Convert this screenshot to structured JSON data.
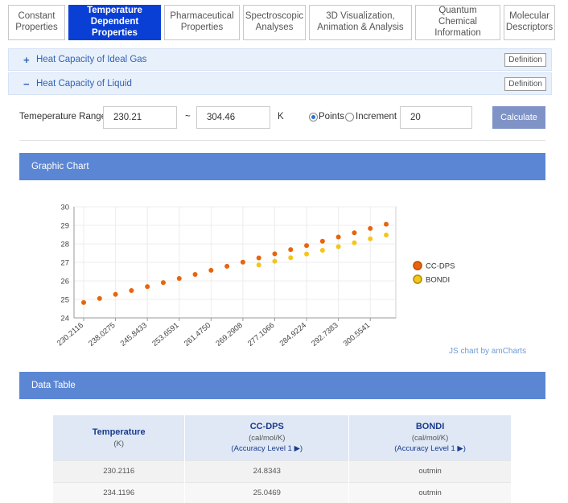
{
  "tabs": [
    {
      "label": "Constant\nProperties",
      "active": false
    },
    {
      "label": "Temperature\nDependent Properties",
      "active": true
    },
    {
      "label": "Pharmaceutical\nProperties",
      "active": false
    },
    {
      "label": "Spectroscopic\nAnalyses",
      "active": false
    },
    {
      "label": "3D Visualization,\nAnimation & Analysis",
      "active": false
    },
    {
      "label": "Quantum Chemical\nInformation",
      "active": false
    },
    {
      "label": "Molecular\nDescriptors",
      "active": false
    }
  ],
  "accordion": [
    {
      "sign": "+",
      "label": "Heat Capacity of Ideal Gas",
      "definition": "Definition"
    },
    {
      "sign": "−",
      "label": "Heat Capacity of Liquid",
      "definition": "Definition"
    }
  ],
  "range": {
    "label": "Temeperature Range",
    "min": "230.21",
    "tilde": "~",
    "max": "304.46",
    "unit": "K",
    "points_label": "Points",
    "increment_label": "Increment",
    "count": "20",
    "calculate": "Calculate"
  },
  "graphic_bar": "Graphic Chart",
  "data_bar": "Data Table",
  "chart_data": {
    "type": "scatter",
    "ylim": [
      24,
      30
    ],
    "yticks": [
      24,
      25,
      26,
      27,
      28,
      29,
      30
    ],
    "xlim": [
      230.2116,
      304.46
    ],
    "xticks": [
      "230.2116",
      "238.0275",
      "245.8433",
      "253.6591",
      "261.4750",
      "269.2908",
      "277.1066",
      "284.9224",
      "292.7383",
      "300.5541"
    ],
    "grid": true,
    "legend_position": "right",
    "series": [
      {
        "name": "CC-DPS",
        "color": "#e8650e",
        "x": [
          230.2116,
          234.1196,
          238.0275,
          241.9354,
          245.8433,
          249.7512,
          253.6591,
          257.567,
          261.475,
          265.3829,
          269.2908,
          273.1987,
          277.1066,
          281.0145,
          284.9224,
          288.8304,
          292.7383,
          296.6462,
          300.5541,
          304.462
        ],
        "y": [
          24.83,
          25.05,
          25.27,
          25.48,
          25.69,
          25.91,
          26.13,
          26.35,
          26.57,
          26.79,
          27.01,
          27.24,
          27.46,
          27.69,
          27.91,
          28.14,
          28.37,
          28.6,
          28.83,
          29.06
        ]
      },
      {
        "name": "BONDI",
        "color": "#f5c518",
        "x": [
          273.1987,
          277.1066,
          281.0145,
          284.9224,
          288.8304,
          292.7383,
          296.6462,
          300.5541,
          304.462
        ],
        "y": [
          26.86,
          27.06,
          27.25,
          27.45,
          27.65,
          27.85,
          28.06,
          28.27,
          28.48
        ]
      }
    ]
  },
  "chart_credit": "JS chart by amCharts",
  "table": {
    "headers": [
      {
        "title": "Temperature",
        "unit": "(K)",
        "link": ""
      },
      {
        "title": "CC-DPS",
        "unit": "(cal/mol/K)",
        "link": "(Accuracy Level 1 ▶)"
      },
      {
        "title": "BONDI",
        "unit": "(cal/mol/K)",
        "link": "(Accuracy Level 1 ▶)"
      }
    ],
    "rows": [
      [
        "230.2116",
        "24.8343",
        "outmin"
      ],
      [
        "234.1196",
        "25.0469",
        "outmin"
      ]
    ]
  }
}
